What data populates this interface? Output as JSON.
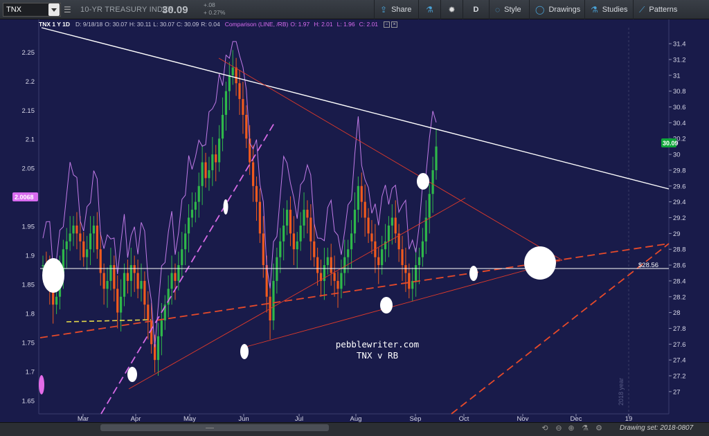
{
  "toolbar": {
    "symbol": "TNX",
    "description": "10-YR TREASURY INDEX",
    "last_price": "30.09",
    "change": "+.08",
    "change_pct": "+ 0.27%",
    "buttons": [
      {
        "label": "Share",
        "icon": "share-icon"
      },
      {
        "label": "",
        "icon": "flask-icon"
      },
      {
        "label": "",
        "icon": "gear-icon"
      },
      {
        "label": "D",
        "icon": "period-d"
      },
      {
        "label": "Style",
        "icon": "style-icon"
      },
      {
        "label": "Drawings",
        "icon": "drawings-icon"
      },
      {
        "label": "Studies",
        "icon": "studies-icon"
      },
      {
        "label": "Patterns",
        "icon": "patterns-icon"
      }
    ]
  },
  "infobar": {
    "symbol": "TNX 1 Y 1D",
    "date": "D: 9/18/18",
    "open": "O: 30.07",
    "high": "H: 30.11",
    "low": "L: 30.07",
    "close": "C: 30.09",
    "range": "R: 0.04",
    "comparison": "Comparison (LINE, /RB)",
    "cmp_open": "O: 1.97",
    "cmp_high": "H: 2.01",
    "cmp_low": "L: 1.96",
    "cmp_close": "C: 2.01"
  },
  "watermark": {
    "line1": "pebblewriter.com",
    "line2": "TNX v RB"
  },
  "chart_data": {
    "type": "candlestick",
    "primary_series": "TNX",
    "comparison_series": "/RB",
    "x_months": [
      "Mar",
      "Apr",
      "May",
      "Jun",
      "Jul",
      "Aug",
      "Sep",
      "Oct",
      "Nov",
      "Dec",
      "19"
    ],
    "x_gridline_label": "2018 year",
    "right_axis_ticks": [
      "31.4",
      "31.2",
      "31",
      "30.8",
      "30.6",
      "30.4",
      "30.2",
      "30",
      "29.8",
      "29.6",
      "29.4",
      "29.2",
      "29",
      "28.8",
      "28.6",
      "28.4",
      "28.2",
      "28",
      "27.8",
      "27.6",
      "27.4",
      "27.2",
      "27"
    ],
    "left_axis_ticks": [
      "2.25",
      "2.2",
      "2.15",
      "2.1",
      "2.05",
      "2",
      "1.95",
      "1.9",
      "1.85",
      "1.8",
      "1.75",
      "1.7",
      "1.65"
    ],
    "right_ylim": [
      26.85,
      31.55
    ],
    "left_ylim": [
      1.645,
      2.285
    ],
    "last_price_label": "30.09",
    "comparison_last_label": "2.0068",
    "horizontal_level_label": "$28.56",
    "horizontal_level": 28.56,
    "tnx_closes": [
      28.6,
      28.5,
      28.3,
      28.1,
      28.2,
      28.5,
      28.8,
      28.9,
      29.0,
      29.1,
      29.0,
      28.9,
      28.7,
      28.8,
      29.0,
      29.1,
      28.8,
      28.5,
      28.3,
      28.4,
      28.6,
      28.3,
      28.0,
      28.2,
      28.5,
      28.4,
      28.6,
      28.5,
      28.3,
      28.4,
      28.1,
      27.9,
      27.6,
      27.4,
      27.7,
      27.9,
      28.1,
      28.3,
      28.5,
      28.4,
      28.6,
      28.8,
      29.0,
      29.2,
      29.3,
      29.4,
      29.6,
      29.9,
      29.7,
      29.8,
      30.0,
      29.9,
      30.2,
      30.5,
      30.8,
      31.0,
      31.1,
      30.9,
      30.7,
      30.5,
      30.2,
      29.9,
      29.6,
      29.4,
      29.0,
      28.6,
      28.2,
      27.9,
      28.4,
      28.7,
      28.9,
      29.1,
      29.3,
      29.0,
      28.8,
      28.9,
      29.1,
      29.3,
      29.2,
      28.9,
      28.7,
      28.5,
      28.4,
      28.6,
      28.7,
      28.5,
      28.4,
      28.3,
      28.5,
      28.7,
      28.8,
      29.0,
      29.3,
      29.6,
      29.4,
      29.2,
      29.0,
      28.9,
      28.7,
      28.6,
      28.8,
      28.9,
      29.1,
      29.2,
      29.0,
      28.8,
      28.6,
      28.5,
      28.3,
      28.4,
      28.6,
      28.7,
      28.9,
      29.2,
      29.5,
      29.8,
      30.1
    ]
  },
  "bottombar": {
    "drawing_set": "Drawing set: 2018-0807"
  }
}
